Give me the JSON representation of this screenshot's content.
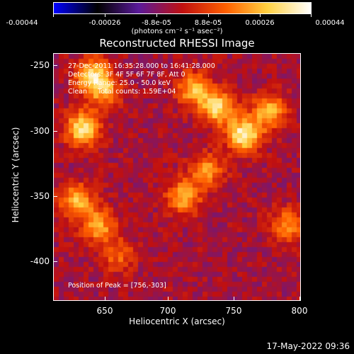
{
  "colorbar": {
    "ticks": [
      "-0.00044",
      "-0.00026",
      "-8.8e-05",
      "8.8e-05",
      "0.00026",
      "0.00044"
    ],
    "units": "(photons cm⁻² s⁻¹ asec⁻²)",
    "colors": [
      "#0000ff",
      "#000000",
      "#5a1a9a",
      "#c01010",
      "#ff6000",
      "#ffd040",
      "#ffffff"
    ]
  },
  "title": "Reconstructed RHESSI Image",
  "info": {
    "time": "27-Dec-2011 16:35:28.000 to 16:41:28.000",
    "detectors": "Detectors: 3F 4F 5F 6F 7F 8F, Att 0",
    "energy": "Energy Range: 25.0 - 50.0 keV",
    "clean": "Clean     Total counts: 1.59E+04",
    "peak": "Position of Peak = [756,-303]"
  },
  "footer": "17-May-2022 09:36",
  "chart_data": {
    "type": "heatmap",
    "title": "Reconstructed RHESSI Image",
    "xlabel": "Heliocentric X (arcsec)",
    "ylabel": "Heliocentric Y (arcsec)",
    "xlim": [
      611,
      800
    ],
    "ylim": [
      -430,
      -241
    ],
    "x_ticks": [
      "650",
      "700",
      "750",
      "800"
    ],
    "y_ticks": [
      "-250",
      "-300",
      "-350",
      "-400"
    ],
    "peak": [
      756,
      -303
    ],
    "color_range": [
      -0.00044,
      0.00044
    ],
    "sources": [
      {
        "x": 640,
        "y": -257,
        "intensity": 0.00035
      },
      {
        "x": 633,
        "y": -298,
        "intensity": 0.0004
      },
      {
        "x": 650,
        "y": -270,
        "intensity": 0.00025
      },
      {
        "x": 718,
        "y": -268,
        "intensity": 0.0003
      },
      {
        "x": 756,
        "y": -303,
        "intensity": 0.00044
      },
      {
        "x": 736,
        "y": -282,
        "intensity": 0.00036
      },
      {
        "x": 775,
        "y": -285,
        "intensity": 0.0003
      },
      {
        "x": 710,
        "y": -350,
        "intensity": 0.0003
      },
      {
        "x": 728,
        "y": -330,
        "intensity": 0.00025
      },
      {
        "x": 628,
        "y": -353,
        "intensity": 0.0003
      },
      {
        "x": 645,
        "y": -372,
        "intensity": 0.00028
      },
      {
        "x": 790,
        "y": -372,
        "intensity": 0.00025
      },
      {
        "x": 660,
        "y": -395,
        "intensity": 0.00018
      }
    ]
  }
}
